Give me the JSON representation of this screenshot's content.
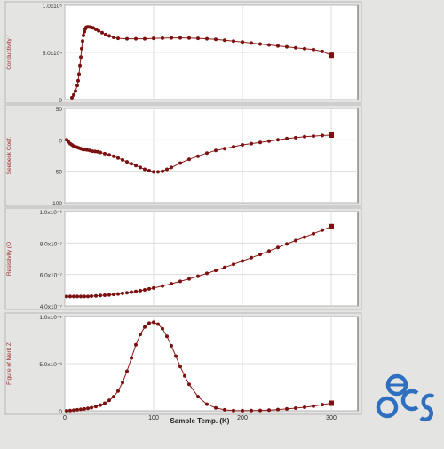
{
  "style": {
    "marker_color": "#7a1010",
    "line_color": "#8b1a1a",
    "ylabel_color": "#9a2a2a",
    "background": "#e4e4e2",
    "panel_background": "#ffffff",
    "grid_color": "#d6d6d6",
    "logo_color": "#2f6fc0"
  },
  "logo": {
    "name": "ecs-logo",
    "text": "ecs"
  },
  "chart_data": [
    {
      "type": "line",
      "ylabel": "Conductivity (",
      "ylim": [
        0,
        1.0
      ],
      "yticks": [
        0,
        0.5,
        1.0
      ],
      "ytick_labels": [
        "0",
        "5.0x10⁴",
        "1.0x10⁵"
      ],
      "xlim": [
        0,
        330
      ],
      "xticks": [
        0,
        100,
        200,
        300
      ],
      "xtick_labels": [],
      "grid": true,
      "series": [
        {
          "x": [
            8,
            10,
            12,
            14,
            15,
            16,
            17,
            18,
            19,
            20,
            21,
            22,
            23,
            24,
            25,
            26,
            28,
            30,
            32,
            35,
            38,
            42,
            46,
            50,
            55,
            60,
            70,
            80,
            90,
            100,
            110,
            120,
            130,
            140,
            150,
            160,
            170,
            180,
            190,
            200,
            210,
            220,
            230,
            240,
            250,
            260,
            270,
            280,
            290,
            300
          ],
          "y": [
            0.02,
            0.05,
            0.09,
            0.15,
            0.2,
            0.27,
            0.36,
            0.45,
            0.54,
            0.62,
            0.68,
            0.72,
            0.75,
            0.765,
            0.77,
            0.772,
            0.77,
            0.765,
            0.76,
            0.745,
            0.73,
            0.71,
            0.69,
            0.675,
            0.66,
            0.65,
            0.645,
            0.645,
            0.645,
            0.65,
            0.652,
            0.655,
            0.655,
            0.653,
            0.65,
            0.645,
            0.64,
            0.63,
            0.62,
            0.61,
            0.6,
            0.59,
            0.58,
            0.57,
            0.56,
            0.55,
            0.54,
            0.53,
            0.51,
            0.47
          ]
        }
      ]
    },
    {
      "type": "line",
      "ylabel": "Seebeck Coef.",
      "ylim": [
        -100,
        50
      ],
      "yticks": [
        -100,
        -50,
        0,
        50
      ],
      "ytick_labels": [
        "-100",
        "-50",
        "0",
        "50"
      ],
      "xlim": [
        0,
        330
      ],
      "xticks": [
        0,
        100,
        200,
        300
      ],
      "xtick_labels": [],
      "grid": true,
      "series": [
        {
          "x": [
            2,
            4,
            6,
            8,
            10,
            12,
            14,
            16,
            18,
            20,
            22,
            25,
            28,
            31,
            34,
            37,
            40,
            45,
            50,
            55,
            60,
            65,
            70,
            75,
            80,
            85,
            90,
            95,
            100,
            105,
            110,
            115,
            120,
            130,
            140,
            150,
            160,
            170,
            180,
            190,
            200,
            210,
            220,
            230,
            240,
            250,
            260,
            270,
            280,
            290,
            300
          ],
          "y": [
            0,
            -3,
            -6,
            -8,
            -10,
            -11,
            -12,
            -13,
            -14,
            -15,
            -15.5,
            -16,
            -17,
            -18,
            -18.5,
            -19,
            -20,
            -22,
            -24,
            -26,
            -29,
            -32,
            -35,
            -38,
            -41,
            -44,
            -47,
            -49,
            -51,
            -51,
            -50,
            -47,
            -44,
            -37,
            -31,
            -26,
            -21,
            -17,
            -14,
            -11,
            -8,
            -6,
            -4,
            -2,
            0,
            2,
            3.5,
            5,
            6,
            7,
            7.5
          ]
        }
      ]
    },
    {
      "type": "line",
      "ylabel": "Resistivity (O",
      "ylim": [
        4.0,
        10.0
      ],
      "yticks": [
        4.0,
        6.0,
        8.0,
        10.0
      ],
      "ytick_labels": [
        "4.0x10⁻⁷",
        "6.0x10⁻⁷",
        "8.0x10⁻⁷",
        "1.0x10⁻⁶"
      ],
      "xlim": [
        0,
        330
      ],
      "xticks": [
        0,
        100,
        200,
        300
      ],
      "xtick_labels": [],
      "grid": true,
      "series": [
        {
          "x": [
            2,
            6,
            10,
            14,
            18,
            22,
            26,
            30,
            35,
            40,
            45,
            50,
            55,
            60,
            65,
            70,
            75,
            80,
            85,
            90,
            95,
            100,
            110,
            120,
            130,
            140,
            150,
            160,
            170,
            180,
            190,
            200,
            210,
            220,
            230,
            240,
            250,
            260,
            270,
            280,
            290,
            300
          ],
          "y": [
            4.6,
            4.6,
            4.6,
            4.6,
            4.6,
            4.6,
            4.6,
            4.62,
            4.64,
            4.66,
            4.68,
            4.7,
            4.73,
            4.76,
            4.8,
            4.84,
            4.88,
            4.92,
            4.97,
            5.02,
            5.08,
            5.14,
            5.27,
            5.41,
            5.56,
            5.72,
            5.89,
            6.07,
            6.26,
            6.45,
            6.65,
            6.86,
            7.07,
            7.28,
            7.5,
            7.72,
            7.94,
            8.16,
            8.38,
            8.6,
            8.82,
            9.05
          ]
        }
      ]
    },
    {
      "type": "line",
      "ylabel": "Figure of Merit Z",
      "ylim": [
        0,
        1.0
      ],
      "yticks": [
        0,
        0.5,
        1.0
      ],
      "ytick_labels": [
        "0",
        "5.0x10⁻⁶",
        "1.0x10⁻⁵"
      ],
      "xlim": [
        0,
        330
      ],
      "xticks": [
        0,
        100,
        200,
        300
      ],
      "xtick_labels": [
        "0",
        "100",
        "200",
        "300"
      ],
      "xlabel": "Sample Temp. (K)",
      "grid": true,
      "series": [
        {
          "x": [
            2,
            6,
            10,
            14,
            18,
            22,
            26,
            30,
            35,
            40,
            45,
            50,
            55,
            60,
            65,
            70,
            75,
            80,
            85,
            90,
            95,
            100,
            105,
            110,
            115,
            120,
            125,
            130,
            135,
            140,
            150,
            160,
            170,
            180,
            190,
            200,
            210,
            220,
            230,
            240,
            250,
            260,
            270,
            280,
            290,
            300
          ],
          "y": [
            0,
            0.003,
            0.006,
            0.01,
            0.015,
            0.02,
            0.026,
            0.033,
            0.045,
            0.06,
            0.08,
            0.11,
            0.15,
            0.21,
            0.3,
            0.42,
            0.56,
            0.7,
            0.81,
            0.89,
            0.93,
            0.94,
            0.92,
            0.87,
            0.79,
            0.69,
            0.58,
            0.47,
            0.37,
            0.28,
            0.15,
            0.07,
            0.03,
            0.01,
            0.003,
            0.001,
            0.002,
            0.004,
            0.008,
            0.013,
            0.02,
            0.028,
            0.038,
            0.05,
            0.065,
            0.08
          ]
        }
      ]
    }
  ]
}
